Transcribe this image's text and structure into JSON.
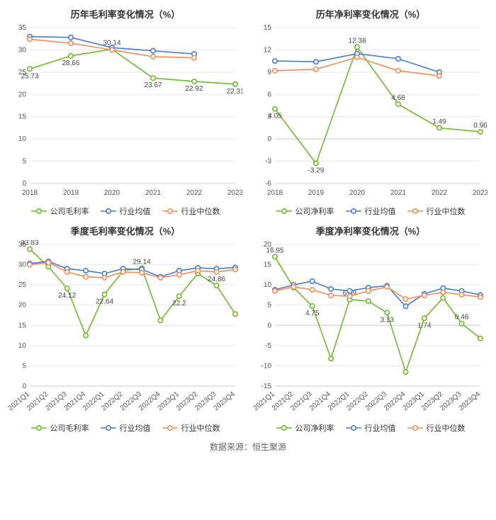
{
  "source_text": "数据来源：恒生聚源",
  "palette": {
    "company": "#6fb92c",
    "avg": "#4a7bd1",
    "median": "#f08c5a",
    "grid": "#e6e6e6",
    "axis": "#cccccc",
    "text": "#555555",
    "label_text": "#444444"
  },
  "marker": {
    "radius": 3.2,
    "line_width": 1.6,
    "label_fontsize": 10,
    "tick_fontsize": 10,
    "title_fontsize": 13
  },
  "charts": [
    {
      "id": "c1",
      "title": "历年毛利率变化情况（%）",
      "legend": [
        "公司毛利率",
        "行业均值",
        "行业中位数"
      ],
      "categories": [
        "2018",
        "2019",
        "2020",
        "2021",
        "2022",
        "2023"
      ],
      "ylim": [
        0,
        35
      ],
      "ytick_step": 5,
      "xtick_rotate": 0,
      "series": [
        {
          "key": "company",
          "values": [
            25.73,
            28.66,
            30.14,
            23.67,
            22.92,
            22.31
          ],
          "labels": [
            25.73,
            28.66,
            30.14,
            23.67,
            22.92,
            22.31
          ],
          "label_pos": [
            "below",
            "below",
            "above",
            "below",
            "below",
            "below"
          ]
        },
        {
          "key": "avg",
          "values": [
            33.0,
            32.8,
            30.5,
            29.8,
            29.1,
            null
          ],
          "labels": []
        },
        {
          "key": "median",
          "values": [
            32.4,
            31.5,
            30.0,
            28.5,
            28.2,
            null
          ],
          "labels": []
        }
      ]
    },
    {
      "id": "c2",
      "title": "历年净利率变化情况（%）",
      "legend": [
        "公司净利率",
        "行业均值",
        "行业中位数"
      ],
      "categories": [
        "2018",
        "2019",
        "2020",
        "2021",
        "2022",
        "2023"
      ],
      "ylim": [
        -6,
        15
      ],
      "ytick_step": 3,
      "xtick_rotate": 0,
      "series": [
        {
          "key": "company",
          "values": [
            4.05,
            -3.29,
            12.38,
            4.68,
            1.49,
            0.96
          ],
          "labels": [
            4.05,
            -3.29,
            12.38,
            4.68,
            1.49,
            0.96
          ],
          "label_pos": [
            "below",
            "below",
            "above",
            "above",
            "above",
            "above"
          ]
        },
        {
          "key": "avg",
          "values": [
            10.5,
            10.4,
            11.5,
            10.8,
            9.0,
            null
          ],
          "labels": []
        },
        {
          "key": "median",
          "values": [
            9.2,
            9.4,
            11.0,
            9.2,
            8.5,
            null
          ],
          "labels": []
        }
      ]
    },
    {
      "id": "c3",
      "title": "季度毛利率变化情况（%）",
      "legend": [
        "公司毛利率",
        "行业均值",
        "行业中位数"
      ],
      "categories": [
        "2021Q1",
        "2021Q2",
        "2021Q3",
        "2021Q4",
        "2022Q1",
        "2022Q2",
        "2022Q3",
        "2022Q4",
        "2023Q1",
        "2023Q2",
        "2023Q3",
        "2023Q4"
      ],
      "ylim": [
        0,
        35
      ],
      "ytick_step": 5,
      "xtick_rotate": -40,
      "series": [
        {
          "key": "company",
          "values": [
            33.83,
            29.5,
            24.12,
            12.5,
            22.64,
            28.5,
            29.14,
            16.2,
            22.2,
            27.8,
            24.86,
            17.8
          ],
          "labels": [
            33.83,
            null,
            24.12,
            null,
            22.64,
            null,
            29.14,
            null,
            22.2,
            null,
            24.86,
            null
          ],
          "label_pos": [
            "above",
            "",
            "below",
            "",
            "below",
            "",
            "above",
            "",
            "below",
            "",
            "above",
            ""
          ]
        },
        {
          "key": "avg",
          "values": [
            30.3,
            30.8,
            29.0,
            28.5,
            27.8,
            29.0,
            28.8,
            27.0,
            28.5,
            29.2,
            29.0,
            29.3
          ],
          "labels": []
        },
        {
          "key": "median",
          "values": [
            30.0,
            30.5,
            28.2,
            27.0,
            26.8,
            28.2,
            28.0,
            26.8,
            27.5,
            28.5,
            28.2,
            28.8
          ],
          "labels": []
        }
      ]
    },
    {
      "id": "c4",
      "title": "季度净利率变化情况（%）",
      "legend": [
        "公司净利率",
        "行业均值",
        "行业中位数"
      ],
      "categories": [
        "2021Q1",
        "2021Q2",
        "2021Q3",
        "2021Q4",
        "2022Q1",
        "2022Q2",
        "2022Q3",
        "2022Q4",
        "2023Q1",
        "2023Q2",
        "2023Q3",
        "2023Q4"
      ],
      "ylim": [
        -15,
        20
      ],
      "ytick_step": 5,
      "xtick_rotate": -40,
      "series": [
        {
          "key": "company",
          "values": [
            16.95,
            9.3,
            4.75,
            -8.2,
            6.39,
            6.0,
            3.13,
            -11.5,
            1.74,
            6.8,
            0.46,
            -3.2
          ],
          "labels": [
            16.95,
            null,
            4.75,
            null,
            6.39,
            null,
            3.13,
            null,
            1.74,
            null,
            0.46,
            null
          ],
          "label_pos": [
            "above",
            "",
            "below",
            "",
            "above",
            "",
            "below",
            "",
            "below",
            "",
            "above",
            ""
          ]
        },
        {
          "key": "avg",
          "values": [
            8.8,
            10.0,
            10.9,
            9.0,
            8.5,
            9.3,
            9.8,
            4.7,
            7.8,
            9.2,
            8.5,
            7.5
          ],
          "labels": []
        },
        {
          "key": "median",
          "values": [
            8.5,
            9.5,
            8.8,
            7.4,
            7.2,
            8.5,
            9.5,
            6.5,
            7.4,
            8.2,
            7.6,
            7.0
          ],
          "labels": []
        }
      ]
    }
  ]
}
